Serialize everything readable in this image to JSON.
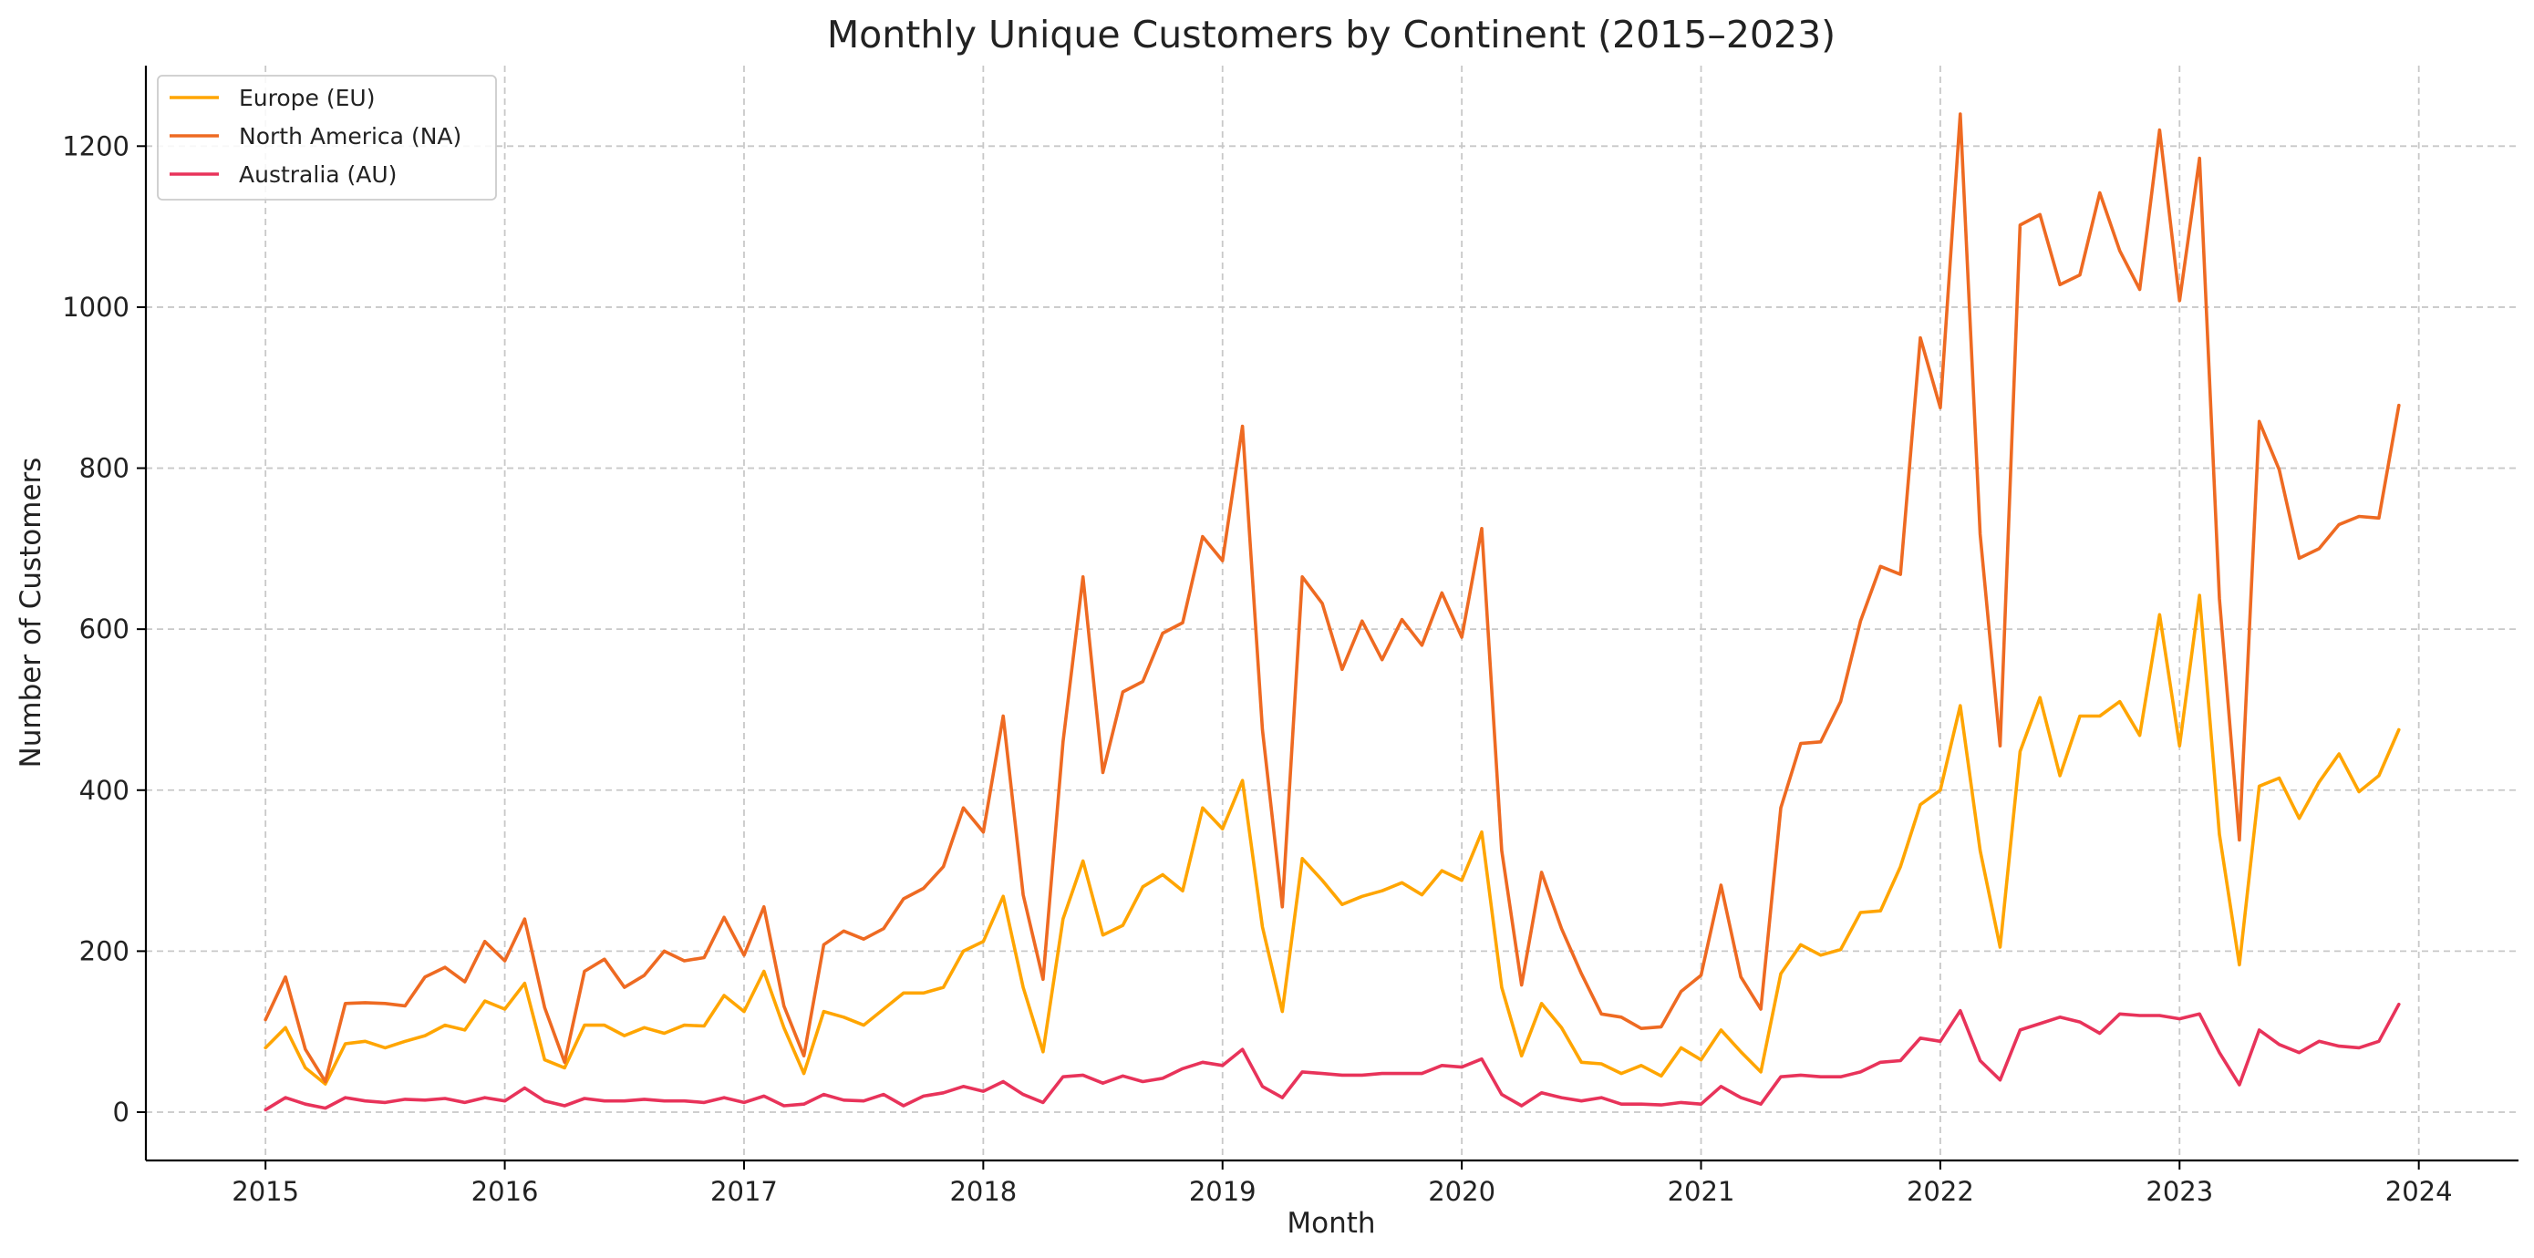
{
  "chart_data": {
    "type": "line",
    "title": "Monthly Unique Customers by Continent (2015–2023)",
    "xlabel": "Month",
    "ylabel": "Number of Customers",
    "x_start": "2015-01",
    "frequency": "monthly",
    "xlim": [
      "2014-07",
      "2024-06"
    ],
    "ylim": [
      -60,
      1300
    ],
    "x_ticks": [
      "2015",
      "2016",
      "2017",
      "2018",
      "2019",
      "2020",
      "2021",
      "2022",
      "2023",
      "2024"
    ],
    "y_ticks": [
      0,
      200,
      400,
      600,
      800,
      1000,
      1200
    ],
    "grid": true,
    "legend_position": "top-left",
    "series": [
      {
        "name": "Europe (EU)",
        "color": "#FFA500",
        "values": [
          80,
          105,
          55,
          35,
          85,
          88,
          80,
          88,
          95,
          108,
          102,
          138,
          128,
          160,
          65,
          55,
          108,
          108,
          95,
          105,
          98,
          108,
          107,
          145,
          125,
          175,
          105,
          48,
          125,
          118,
          108,
          128,
          148,
          148,
          155,
          200,
          212,
          268,
          155,
          75,
          240,
          312,
          220,
          232,
          280,
          295,
          275,
          378,
          352,
          412,
          230,
          125,
          315,
          288,
          258,
          268,
          275,
          285,
          270,
          300,
          288,
          348,
          155,
          70,
          135,
          105,
          62,
          60,
          48,
          58,
          45,
          80,
          65,
          102,
          75,
          50,
          172,
          208,
          195,
          202,
          248,
          250,
          305,
          382,
          400,
          505,
          325,
          205,
          448,
          515,
          418,
          492,
          492,
          510,
          468,
          618,
          455,
          642,
          345,
          183,
          405,
          415,
          365,
          410,
          445,
          398,
          418,
          475
        ]
      },
      {
        "name": "North America (NA)",
        "color": "#EE6A22",
        "values": [
          115,
          168,
          78,
          38,
          135,
          136,
          135,
          132,
          168,
          180,
          162,
          212,
          188,
          240,
          130,
          62,
          175,
          190,
          155,
          170,
          200,
          188,
          192,
          242,
          195,
          255,
          132,
          70,
          208,
          225,
          215,
          228,
          265,
          278,
          305,
          378,
          348,
          492,
          270,
          165,
          460,
          665,
          422,
          522,
          535,
          595,
          608,
          715,
          685,
          852,
          475,
          255,
          665,
          632,
          550,
          610,
          562,
          612,
          580,
          645,
          590,
          725,
          325,
          158,
          298,
          228,
          172,
          122,
          118,
          104,
          106,
          150,
          170,
          282,
          168,
          128,
          378,
          458,
          460,
          510,
          610,
          678,
          668,
          962,
          875,
          1240,
          718,
          455,
          1102,
          1115,
          1028,
          1040,
          1142,
          1070,
          1022,
          1220,
          1008,
          1185,
          638,
          338,
          858,
          798,
          688,
          700,
          730,
          740,
          738,
          878
        ]
      },
      {
        "name": "Australia (AU)",
        "color": "#E8335A",
        "values": [
          3,
          18,
          10,
          5,
          18,
          14,
          12,
          16,
          15,
          17,
          12,
          18,
          14,
          30,
          14,
          8,
          17,
          14,
          14,
          16,
          14,
          14,
          12,
          18,
          12,
          20,
          8,
          10,
          22,
          15,
          14,
          22,
          8,
          20,
          24,
          32,
          26,
          38,
          22,
          12,
          44,
          46,
          36,
          45,
          38,
          42,
          54,
          62,
          58,
          78,
          32,
          18,
          50,
          48,
          46,
          46,
          48,
          48,
          48,
          58,
          56,
          66,
          22,
          8,
          24,
          18,
          14,
          18,
          10,
          10,
          9,
          12,
          10,
          32,
          18,
          10,
          44,
          46,
          44,
          44,
          50,
          62,
          64,
          92,
          88,
          126,
          64,
          40,
          102,
          110,
          118,
          112,
          98,
          122,
          120,
          120,
          116,
          122,
          74,
          34,
          102,
          84,
          74,
          88,
          82,
          80,
          88,
          134
        ]
      }
    ]
  }
}
